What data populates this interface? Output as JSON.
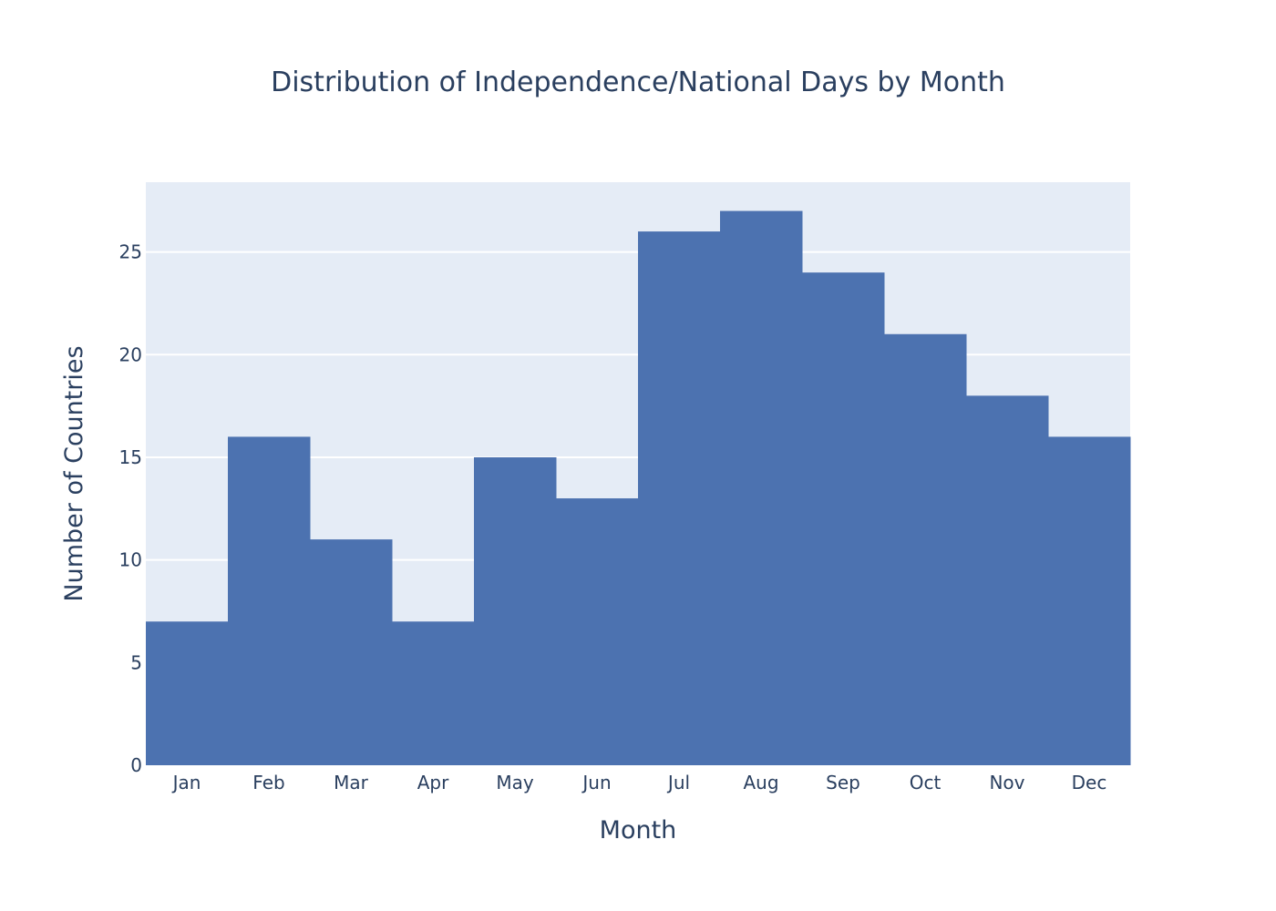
{
  "chart_data": {
    "type": "bar",
    "title": "Distribution of Independence/National Days by Month",
    "xlabel": "Month",
    "ylabel": "Number of Countries",
    "categories": [
      "Jan",
      "Feb",
      "Mar",
      "Apr",
      "May",
      "Jun",
      "Jul",
      "Aug",
      "Sep",
      "Oct",
      "Nov",
      "Dec"
    ],
    "values": [
      7,
      16,
      11,
      7,
      15,
      13,
      26,
      27,
      24,
      21,
      18,
      16
    ],
    "ylim": [
      0,
      28.4
    ],
    "yticks": [
      0,
      5,
      10,
      15,
      20,
      25
    ],
    "grid": true,
    "legend": "none",
    "bar_color": "#4c72b0",
    "plot_background": "#e5ecf6",
    "gridline_color": "#ffffff",
    "text_color": "#2a3f5f"
  }
}
